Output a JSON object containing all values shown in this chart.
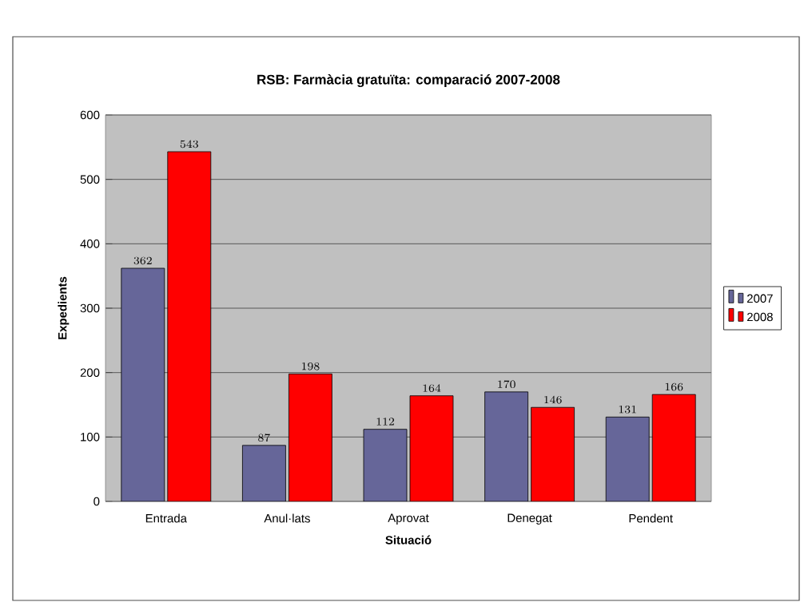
{
  "chart_data": {
    "type": "bar",
    "title": "RSB: Farmàcia gratuïta: comparació 2007-2008",
    "xlabel": "Situació",
    "ylabel": "Expedients",
    "categories": [
      "Entrada",
      "Anul·lats",
      "Aprovat",
      "Denegat",
      "Pendent"
    ],
    "series": [
      {
        "name": "2007",
        "color": "#666699",
        "values": [
          362,
          87,
          112,
          170,
          131
        ]
      },
      {
        "name": "2008",
        "color": "#ff0000",
        "values": [
          543,
          198,
          164,
          146,
          166
        ]
      }
    ],
    "ylim": [
      0,
      600
    ],
    "yticks": [
      0,
      100,
      200,
      300,
      400,
      500,
      600
    ],
    "grid": "y",
    "legend": "right",
    "data_labels": true
  }
}
